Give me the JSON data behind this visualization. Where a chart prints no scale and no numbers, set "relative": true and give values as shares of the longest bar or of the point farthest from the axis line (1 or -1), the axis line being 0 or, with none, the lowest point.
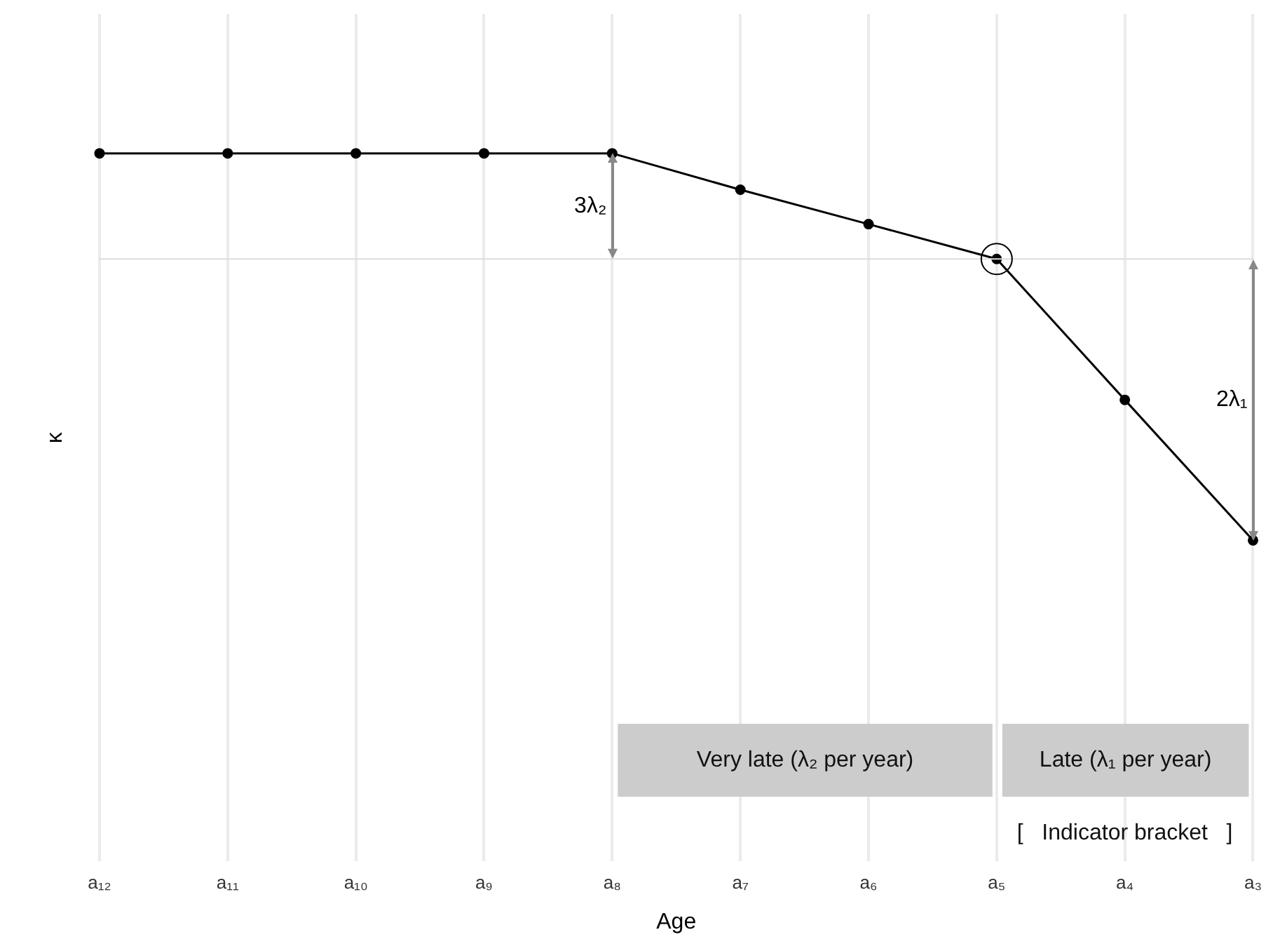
{
  "chart_data": {
    "type": "line",
    "relative": true,
    "xlabel": "Age",
    "ylabel": "κ",
    "categories": [
      "a₁₂",
      "a₁₁",
      "a₁₀",
      "a₉",
      "a₈",
      "a₇",
      "a₆",
      "a₅",
      "a₄",
      "a₃"
    ],
    "series": [
      {
        "color": "#000000",
        "values": [
          1,
          1,
          1,
          1,
          1,
          0.906,
          0.817,
          0.727,
          0.363,
          0
        ]
      }
    ],
    "marker": "circle",
    "grid": "x",
    "legend": false,
    "ref_lines": [
      {
        "axis": "y",
        "value": 0.727,
        "color": "#dddddd"
      }
    ],
    "annotations": [
      "3λ₂",
      "2λ₁",
      "Very late (λ₂ per year)",
      "Late (λ₁ per year)",
      "[   Indicator bracket   ]"
    ]
  }
}
